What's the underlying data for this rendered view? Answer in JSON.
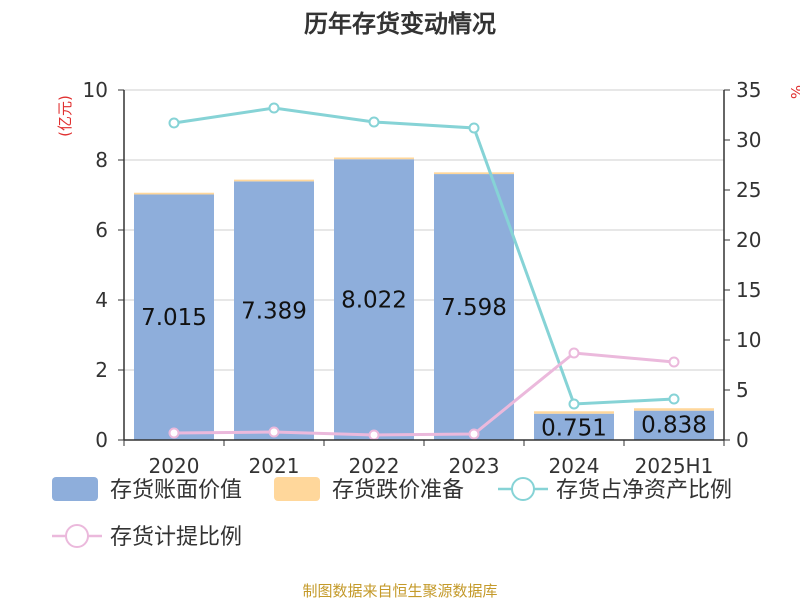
{
  "colors": {
    "book_value": "#8eaedb",
    "impairment": "#ffd79b",
    "net_asset_ratio": "#86d3d6",
    "provision_ratio": "#ebb9dc",
    "grid": "#cfcfcf",
    "axis": "#333333",
    "left_unit": "#e03030",
    "source": "#c49a2a"
  },
  "chart_data": {
    "type": "bar",
    "title": "历年存货变动情况",
    "left_axis_label": "(亿元)",
    "right_axis_label": "%",
    "categories": [
      "2020",
      "2021",
      "2022",
      "2023",
      "2024",
      "2025H1"
    ],
    "left_ylim": [
      0,
      10
    ],
    "left_ticks": [
      0,
      2,
      4,
      6,
      8,
      10
    ],
    "right_ylim": [
      0,
      35
    ],
    "right_ticks": [
      0,
      5,
      10,
      15,
      20,
      25,
      30,
      35
    ],
    "grid": true,
    "legend_position": "bottom",
    "series": [
      {
        "name": "存货账面价值",
        "kind": "bar",
        "axis": "left",
        "color_key": "book_value",
        "values": [
          7.015,
          7.389,
          8.022,
          7.598,
          0.751,
          0.838
        ],
        "data_labels": [
          "7.015",
          "7.389",
          "8.022",
          "7.598",
          "0.751",
          "0.838"
        ]
      },
      {
        "name": "存货跌价准备",
        "kind": "bar",
        "axis": "left",
        "color_key": "impairment",
        "values": [
          0.05,
          0.05,
          0.05,
          0.05,
          0.07,
          0.07
        ]
      },
      {
        "name": "存货占净资产比例",
        "kind": "line",
        "axis": "right",
        "color_key": "net_asset_ratio",
        "values": [
          31.7,
          33.2,
          31.8,
          31.2,
          3.6,
          4.1
        ]
      },
      {
        "name": "存货计提比例",
        "kind": "line",
        "axis": "right",
        "color_key": "provision_ratio",
        "values": [
          0.7,
          0.8,
          0.5,
          0.6,
          8.7,
          7.8
        ]
      }
    ]
  },
  "source_note": "制图数据来自恒生聚源数据库"
}
